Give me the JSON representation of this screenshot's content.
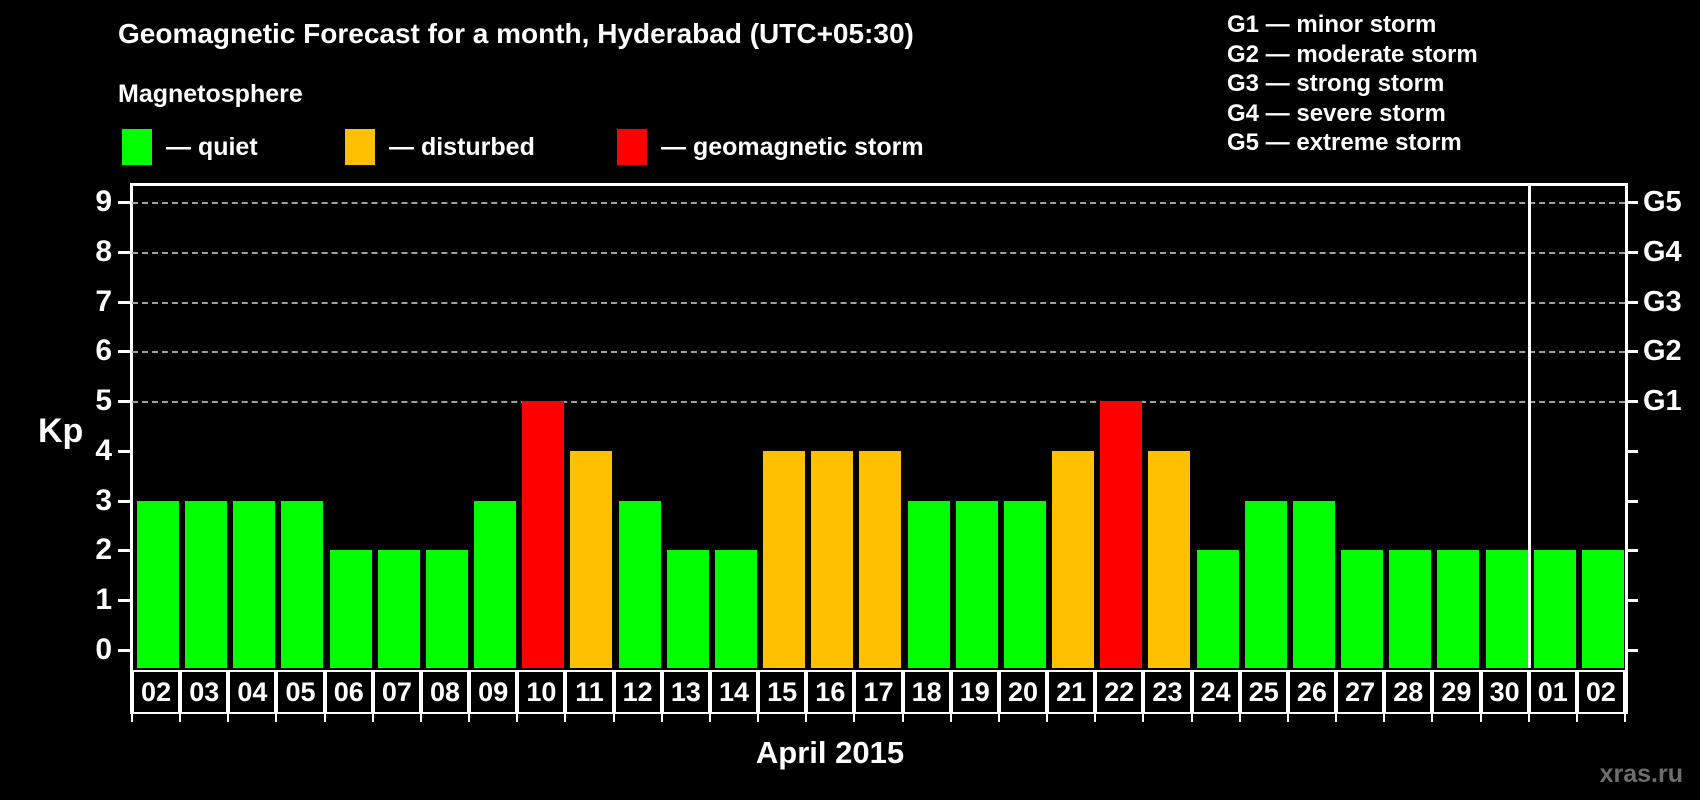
{
  "title": "Geomagnetic Forecast for a month, Hyderabad (UTC+05:30)",
  "subtitle": "Magnetosphere",
  "legend": {
    "items": [
      {
        "name": "quiet",
        "label": "— quiet",
        "color": "#00ff00",
        "x": 0
      },
      {
        "name": "disturbed",
        "label": "— disturbed",
        "color": "#ffc000",
        "x": 223
      },
      {
        "name": "geomagnetic-storm",
        "label": "— geomagnetic storm",
        "color": "#ff0000",
        "x": 495
      }
    ]
  },
  "g_legend": [
    "G1 — minor storm",
    "G2 — moderate storm",
    "G3 — strong storm",
    "G4 — severe storm",
    "G5 — extreme storm"
  ],
  "axes": {
    "kp_label": "Kp",
    "kp_ticks": [
      0,
      1,
      2,
      3,
      4,
      5,
      6,
      7,
      8,
      9
    ],
    "xlabel": "April 2015"
  },
  "watermark": "xras.ru",
  "chart_data": {
    "type": "bar",
    "title": "Geomagnetic Forecast for a month, Hyderabad (UTC+05:30)",
    "xlabel": "April 2015",
    "ylabel": "Kp",
    "ylim": [
      0,
      9
    ],
    "gridlines_at": [
      5,
      6,
      7,
      8,
      9
    ],
    "right_axis_labels": {
      "5": "G1",
      "6": "G2",
      "7": "G3",
      "8": "G4",
      "9": "G5"
    },
    "legend_position": "top",
    "grid": "dashed-horizontal",
    "month_boundary_after_index": 28,
    "categories": [
      "02",
      "03",
      "04",
      "05",
      "06",
      "07",
      "08",
      "09",
      "10",
      "11",
      "12",
      "13",
      "14",
      "15",
      "16",
      "17",
      "18",
      "19",
      "20",
      "21",
      "22",
      "23",
      "24",
      "25",
      "26",
      "27",
      "28",
      "29",
      "30",
      "01",
      "02"
    ],
    "values": [
      3,
      3,
      3,
      3,
      2,
      2,
      2,
      3,
      5,
      4,
      3,
      2,
      2,
      4,
      4,
      4,
      3,
      3,
      3,
      4,
      5,
      4,
      2,
      3,
      3,
      2,
      2,
      2,
      2,
      2,
      2
    ],
    "statuses": [
      "quiet",
      "quiet",
      "quiet",
      "quiet",
      "quiet",
      "quiet",
      "quiet",
      "quiet",
      "storm",
      "disturbed",
      "quiet",
      "quiet",
      "quiet",
      "disturbed",
      "disturbed",
      "disturbed",
      "quiet",
      "quiet",
      "quiet",
      "disturbed",
      "storm",
      "disturbed",
      "quiet",
      "quiet",
      "quiet",
      "quiet",
      "quiet",
      "quiet",
      "quiet",
      "quiet",
      "quiet"
    ],
    "status_colors": {
      "quiet": "#00ff00",
      "disturbed": "#ffc000",
      "storm": "#ff0000"
    }
  }
}
